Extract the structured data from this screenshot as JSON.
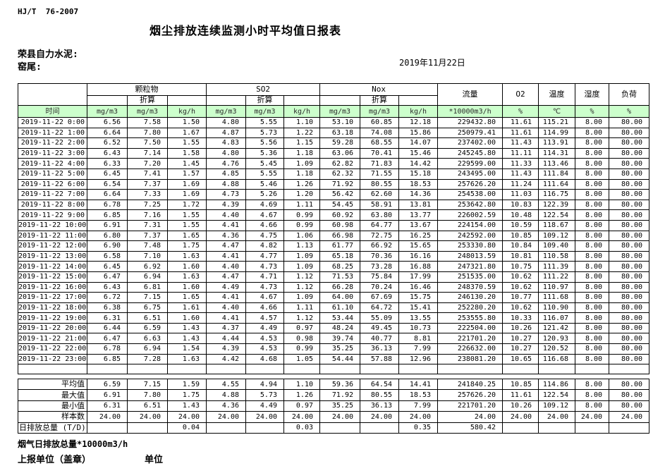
{
  "header": {
    "doc_code": "HJ/T  76-2007",
    "title": "烟尘排放连续监测小时平均值日报表",
    "company": "荣县自力水泥:",
    "location": "窑尾:",
    "date": "2019年11月22日"
  },
  "table": {
    "time_label": "时间",
    "group_pm": "颗粒物",
    "group_so2": "SO2",
    "group_nox": "Nox",
    "converted_label": "折算",
    "flow_label": "流量",
    "o2_label": "O2",
    "temp_label": "温度",
    "humidity_label": "湿度",
    "load_label": "负荷",
    "units": [
      "mg/m3",
      "mg/m3",
      "kg/h",
      "mg/m3",
      "mg/m3",
      "kg/h",
      "mg/m3",
      "mg/m3",
      "kg/h",
      "*10000m3/h",
      "%",
      "℃",
      "%",
      "%"
    ],
    "rows": [
      {
        "time": "2019-11-22 0:00",
        "values": [
          "6.56",
          "7.58",
          "1.50",
          "4.80",
          "5.55",
          "1.10",
          "53.10",
          "60.85",
          "12.18",
          "229432.80",
          "11.61",
          "115.21",
          "8.00",
          "80.00"
        ]
      },
      {
        "time": "2019-11-22 1:00",
        "values": [
          "6.64",
          "7.80",
          "1.67",
          "4.87",
          "5.73",
          "1.22",
          "63.18",
          "74.08",
          "15.86",
          "250979.41",
          "11.61",
          "114.99",
          "8.00",
          "80.00"
        ]
      },
      {
        "time": "2019-11-22 2:00",
        "values": [
          "6.52",
          "7.50",
          "1.55",
          "4.83",
          "5.56",
          "1.15",
          "59.28",
          "68.55",
          "14.07",
          "237402.00",
          "11.43",
          "113.91",
          "8.00",
          "80.00"
        ]
      },
      {
        "time": "2019-11-22 3:00",
        "values": [
          "6.43",
          "7.14",
          "1.58",
          "4.80",
          "5.36",
          "1.18",
          "63.06",
          "70.41",
          "15.46",
          "245245.80",
          "11.11",
          "114.31",
          "8.00",
          "80.00"
        ]
      },
      {
        "time": "2019-11-22 4:00",
        "values": [
          "6.33",
          "7.20",
          "1.45",
          "4.76",
          "5.45",
          "1.09",
          "62.82",
          "71.83",
          "14.42",
          "229599.00",
          "11.33",
          "113.46",
          "8.00",
          "80.00"
        ]
      },
      {
        "time": "2019-11-22 5:00",
        "values": [
          "6.45",
          "7.41",
          "1.57",
          "4.85",
          "5.55",
          "1.18",
          "62.32",
          "71.55",
          "15.18",
          "243495.00",
          "11.43",
          "111.84",
          "8.00",
          "80.00"
        ]
      },
      {
        "time": "2019-11-22 6:00",
        "values": [
          "6.54",
          "7.37",
          "1.69",
          "4.88",
          "5.46",
          "1.26",
          "71.92",
          "80.55",
          "18.53",
          "257626.20",
          "11.24",
          "111.64",
          "8.00",
          "80.00"
        ]
      },
      {
        "time": "2019-11-22 7:00",
        "values": [
          "6.64",
          "7.33",
          "1.69",
          "4.73",
          "5.26",
          "1.20",
          "56.42",
          "62.60",
          "14.36",
          "254538.00",
          "11.03",
          "116.75",
          "8.00",
          "80.00"
        ]
      },
      {
        "time": "2019-11-22 8:00",
        "values": [
          "6.78",
          "7.25",
          "1.72",
          "4.39",
          "4.69",
          "1.11",
          "54.45",
          "58.91",
          "13.81",
          "253642.80",
          "10.83",
          "122.39",
          "8.00",
          "80.00"
        ]
      },
      {
        "time": "2019-11-22 9:00",
        "values": [
          "6.85",
          "7.16",
          "1.55",
          "4.40",
          "4.67",
          "0.99",
          "60.92",
          "63.80",
          "13.77",
          "226002.59",
          "10.48",
          "122.54",
          "8.00",
          "80.00"
        ]
      },
      {
        "time": "2019-11-22 10:00",
        "values": [
          "6.91",
          "7.31",
          "1.55",
          "4.41",
          "4.66",
          "0.99",
          "60.98",
          "64.77",
          "13.67",
          "224154.00",
          "10.59",
          "118.67",
          "8.00",
          "80.00"
        ]
      },
      {
        "time": "2019-11-22 11:00",
        "values": [
          "6.80",
          "7.37",
          "1.65",
          "4.36",
          "4.75",
          "1.06",
          "66.98",
          "72.75",
          "16.25",
          "242592.00",
          "10.85",
          "109.12",
          "8.00",
          "80.00"
        ]
      },
      {
        "time": "2019-11-22 12:00",
        "values": [
          "6.90",
          "7.48",
          "1.75",
          "4.47",
          "4.82",
          "1.13",
          "61.77",
          "66.92",
          "15.65",
          "253330.80",
          "10.84",
          "109.40",
          "8.00",
          "80.00"
        ]
      },
      {
        "time": "2019-11-22 13:00",
        "values": [
          "6.58",
          "7.10",
          "1.63",
          "4.41",
          "4.77",
          "1.09",
          "65.18",
          "70.36",
          "16.16",
          "248013.59",
          "10.81",
          "110.58",
          "8.00",
          "80.00"
        ]
      },
      {
        "time": "2019-11-22 14:00",
        "values": [
          "6.45",
          "6.92",
          "1.60",
          "4.40",
          "4.73",
          "1.09",
          "68.25",
          "73.28",
          "16.88",
          "247321.80",
          "10.75",
          "111.39",
          "8.00",
          "80.00"
        ]
      },
      {
        "time": "2019-11-22 15:00",
        "values": [
          "6.47",
          "6.94",
          "1.63",
          "4.47",
          "4.71",
          "1.12",
          "71.53",
          "75.84",
          "17.99",
          "251535.00",
          "10.62",
          "111.22",
          "8.00",
          "80.00"
        ]
      },
      {
        "time": "2019-11-22 16:00",
        "values": [
          "6.43",
          "6.81",
          "1.60",
          "4.49",
          "4.73",
          "1.12",
          "66.28",
          "70.24",
          "16.46",
          "248370.59",
          "10.62",
          "110.97",
          "8.00",
          "80.00"
        ]
      },
      {
        "time": "2019-11-22 17:00",
        "values": [
          "6.72",
          "7.15",
          "1.65",
          "4.41",
          "4.67",
          "1.09",
          "64.00",
          "67.69",
          "15.75",
          "246130.20",
          "10.77",
          "111.68",
          "8.00",
          "80.00"
        ]
      },
      {
        "time": "2019-11-22 18:00",
        "values": [
          "6.38",
          "6.75",
          "1.61",
          "4.40",
          "4.66",
          "1.11",
          "61.10",
          "64.72",
          "15.41",
          "252280.20",
          "10.62",
          "110.90",
          "8.00",
          "80.00"
        ]
      },
      {
        "time": "2019-11-22 19:00",
        "values": [
          "6.31",
          "6.51",
          "1.60",
          "4.41",
          "4.57",
          "1.12",
          "53.44",
          "55.09",
          "13.55",
          "253555.80",
          "10.33",
          "116.07",
          "8.00",
          "80.00"
        ]
      },
      {
        "time": "2019-11-22 20:00",
        "values": [
          "6.44",
          "6.59",
          "1.43",
          "4.37",
          "4.49",
          "0.97",
          "48.24",
          "49.45",
          "10.73",
          "222504.00",
          "10.26",
          "121.42",
          "8.00",
          "80.00"
        ]
      },
      {
        "time": "2019-11-22 21:00",
        "values": [
          "6.47",
          "6.63",
          "1.43",
          "4.44",
          "4.53",
          "0.98",
          "39.74",
          "40.77",
          "8.81",
          "221701.20",
          "10.27",
          "120.93",
          "8.00",
          "80.00"
        ]
      },
      {
        "time": "2019-11-22 22:00",
        "values": [
          "6.78",
          "6.94",
          "1.54",
          "4.39",
          "4.53",
          "0.99",
          "35.25",
          "36.13",
          "7.99",
          "226632.00",
          "10.27",
          "120.52",
          "8.00",
          "80.00"
        ]
      },
      {
        "time": "2019-11-22 23:00",
        "values": [
          "6.85",
          "7.28",
          "1.63",
          "4.42",
          "4.68",
          "1.05",
          "54.44",
          "57.88",
          "12.96",
          "238081.20",
          "10.65",
          "116.68",
          "8.00",
          "80.00"
        ]
      }
    ],
    "summary": [
      {
        "label": "平均值",
        "align": "right",
        "values": [
          "6.59",
          "7.15",
          "1.59",
          "4.55",
          "4.94",
          "1.10",
          "59.36",
          "64.54",
          "14.41",
          "241840.25",
          "10.85",
          "114.86",
          "8.00",
          "80.00"
        ]
      },
      {
        "label": "最大值",
        "align": "right",
        "values": [
          "6.91",
          "7.80",
          "1.75",
          "4.88",
          "5.73",
          "1.26",
          "71.92",
          "80.55",
          "18.53",
          "257626.20",
          "11.61",
          "122.54",
          "8.00",
          "80.00"
        ]
      },
      {
        "label": "最小值",
        "align": "right",
        "values": [
          "6.31",
          "6.51",
          "1.43",
          "4.36",
          "4.49",
          "0.97",
          "35.25",
          "36.13",
          "7.99",
          "221701.20",
          "10.26",
          "109.12",
          "8.00",
          "80.00"
        ]
      },
      {
        "label": "样本数",
        "align": "right",
        "values": [
          "24.00",
          "24.00",
          "24.00",
          "24.00",
          "24.00",
          "24.00",
          "24.00",
          "24.00",
          "24.00",
          "24.00",
          "24.00",
          "24.00",
          "24.00",
          "24.00"
        ]
      },
      {
        "label": "日排放总量 (T/D)",
        "align": "left",
        "values": [
          "",
          "",
          "0.04",
          "",
          "",
          "0.03",
          "",
          "",
          "0.35",
          "580.42",
          "",
          "",
          "",
          ""
        ]
      }
    ]
  },
  "footer": {
    "note": "烟气日排放总量*10000m3/h",
    "report_unit": "上报单位（盖章）",
    "unit": "单位"
  },
  "colors": {
    "header_green": "#ccffcc"
  }
}
